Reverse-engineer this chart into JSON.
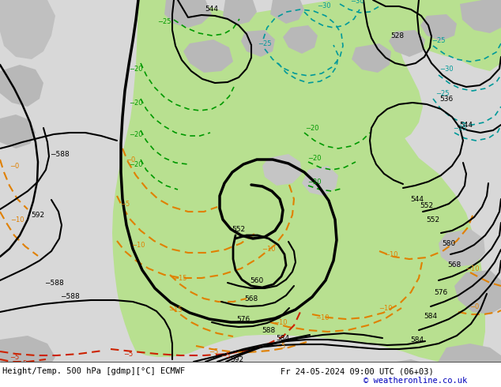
{
  "title_left": "Height/Temp. 500 hPa [gdmp][°C] ECMWF",
  "title_right": "Fr 24-05-2024 09:00 UTC (06+03)",
  "copyright": "© weatheronline.co.uk",
  "bg_gray": "#c8c8c8",
  "bg_light_gray": "#d8d8d8",
  "green_fill": "#b8e090",
  "white": "#ffffff",
  "black": "#000000",
  "orange": "#e08000",
  "red": "#cc2200",
  "green_line": "#009900",
  "teal": "#009999",
  "label_blue": "#0000bb",
  "bottom_bar": "#ffffff"
}
